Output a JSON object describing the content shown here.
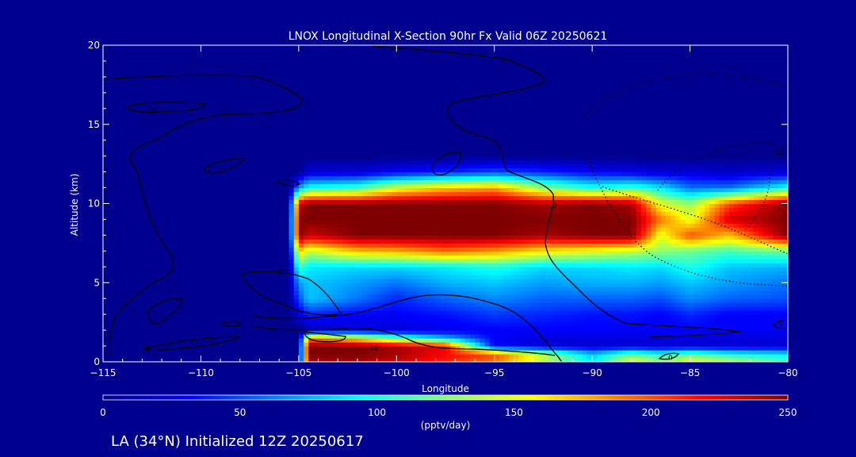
{
  "chart_data": {
    "type": "heatmap",
    "title": "LNOX Longitudinal X-Section 90hr  Fx Valid 06Z 20250621",
    "xlabel": "Longitude",
    "ylabel": "Altitude (km)",
    "xlim": [
      -115,
      -80
    ],
    "ylim": [
      0,
      20
    ],
    "x_ticks": [
      -115,
      -110,
      -105,
      -100,
      -95,
      -90,
      -85,
      -80
    ],
    "x_tick_labels": [
      "−115",
      "−110",
      "−105",
      "−100",
      "−95",
      "−90",
      "−85",
      "−80"
    ],
    "y_ticks": [
      0,
      5,
      10,
      15,
      20
    ],
    "y_tick_labels": [
      "0",
      "5",
      "10",
      "15",
      "20"
    ],
    "colorbar": {
      "label": "(pptv/day)",
      "range": [
        0,
        250
      ],
      "ticks": [
        0,
        50,
        100,
        150,
        200,
        250
      ],
      "tick_labels": [
        "0",
        "50",
        "100",
        "150",
        "200",
        "250"
      ],
      "colormap": [
        "#00008f",
        "#0000ff",
        "#007fff",
        "#00ffff",
        "#7fff7f",
        "#ffff00",
        "#ff7f00",
        "#ff0000",
        "#7f0000"
      ]
    },
    "lon": [
      -115,
      -105.5,
      -105,
      -104.5,
      -102,
      -100,
      -97.5,
      -95,
      -92.5,
      -90,
      -88,
      -86.5,
      -85,
      -83,
      -80
    ],
    "alt": [
      0,
      0.5,
      1,
      1.5,
      2,
      3,
      4,
      5,
      6,
      7,
      8,
      9,
      10,
      11,
      12,
      13,
      14,
      20
    ],
    "values": [
      [
        0,
        0,
        0,
        240,
        240,
        230,
        210,
        190,
        140,
        90,
        150,
        130,
        150,
        140,
        110
      ],
      [
        0,
        0,
        0,
        250,
        250,
        240,
        220,
        200,
        140,
        80,
        120,
        100,
        120,
        100,
        90
      ],
      [
        0,
        0,
        0,
        250,
        250,
        240,
        220,
        30,
        20,
        20,
        20,
        20,
        20,
        20,
        20
      ],
      [
        0,
        0,
        0,
        190,
        160,
        120,
        80,
        30,
        20,
        20,
        20,
        20,
        20,
        20,
        20
      ],
      [
        0,
        0,
        0,
        10,
        20,
        20,
        25,
        30,
        30,
        30,
        30,
        30,
        30,
        30,
        30
      ],
      [
        0,
        0,
        20,
        40,
        30,
        30,
        35,
        45,
        40,
        35,
        35,
        30,
        40,
        30,
        30
      ],
      [
        0,
        0,
        50,
        80,
        60,
        40,
        55,
        65,
        55,
        55,
        55,
        50,
        65,
        55,
        50
      ],
      [
        0,
        0,
        70,
        80,
        70,
        60,
        75,
        80,
        70,
        75,
        75,
        70,
        80,
        70,
        60
      ],
      [
        0,
        0,
        110,
        90,
        85,
        85,
        90,
        100,
        85,
        85,
        90,
        85,
        100,
        80,
        75
      ],
      [
        0,
        0,
        170,
        140,
        170,
        175,
        190,
        180,
        160,
        150,
        140,
        130,
        120,
        110,
        120
      ],
      [
        0,
        0,
        250,
        230,
        250,
        250,
        250,
        250,
        240,
        250,
        250,
        150,
        200,
        170,
        250
      ],
      [
        0,
        0,
        250,
        250,
        250,
        250,
        250,
        250,
        250,
        250,
        250,
        190,
        150,
        230,
        250
      ],
      [
        0,
        0,
        230,
        250,
        250,
        250,
        250,
        250,
        240,
        250,
        240,
        150,
        130,
        200,
        250
      ],
      [
        0,
        0,
        70,
        100,
        110,
        150,
        170,
        180,
        130,
        100,
        110,
        90,
        60,
        60,
        100
      ],
      [
        0,
        0,
        0,
        20,
        20,
        30,
        40,
        50,
        40,
        30,
        25,
        20,
        20,
        15,
        20
      ],
      [
        0,
        0,
        0,
        0,
        0,
        0,
        0,
        0,
        0,
        0,
        0,
        0,
        0,
        0,
        0
      ],
      [
        0,
        0,
        0,
        0,
        0,
        0,
        0,
        0,
        0,
        0,
        0,
        0,
        0,
        0,
        0
      ],
      [
        0,
        0,
        0,
        0,
        0,
        0,
        0,
        0,
        0,
        0,
        0,
        0,
        0,
        0,
        0
      ]
    ],
    "contour_labels": [
      "10",
      "10",
      "0",
      "0",
      "0",
      "10",
      "0",
      "0",
      "0"
    ]
  },
  "footer": {
    "station_text": "LA (34°N) Initialized 12Z 20250617"
  }
}
